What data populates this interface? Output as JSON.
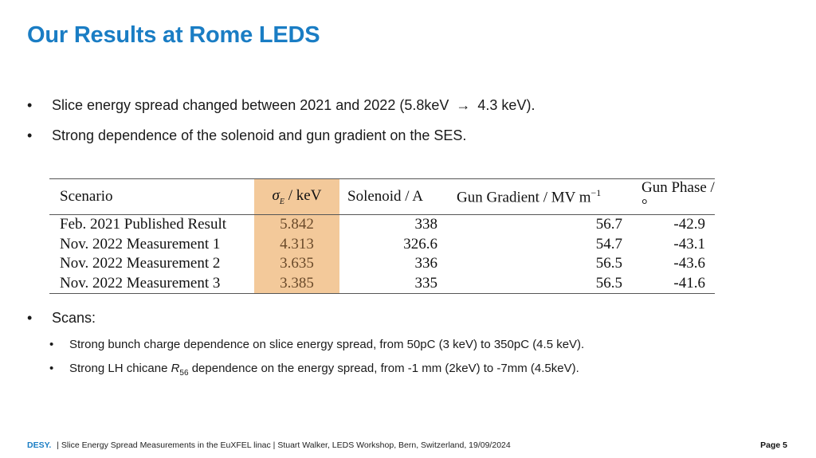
{
  "title": "Our Results at Rome LEDS",
  "bullets": [
    {
      "pre": "Slice energy spread changed between 2021 and 2022 (5.8keV",
      "arrow": "→",
      "post": "4.3 keV)."
    },
    {
      "text": "Strong dependence of the solenoid and gun gradient on the SES."
    }
  ],
  "table": {
    "headers": {
      "scenario": "Scenario",
      "sigma_symbol": "σ",
      "sigma_sub": "E",
      "sigma_unit": "/ keV",
      "solenoid": "Solenoid / A",
      "gradient": "Gun Gradient / MV m",
      "gradient_exp": "−1",
      "phase": "Gun Phase / °"
    },
    "rows": [
      {
        "scenario": "Feb. 2021 Published Result",
        "sigma": "5.842",
        "solenoid": "338",
        "gradient": "56.7",
        "phase": "-42.9"
      },
      {
        "scenario": "Nov. 2022 Measurement 1",
        "sigma": "4.313",
        "solenoid": "326.6",
        "gradient": "54.7",
        "phase": "-43.1"
      },
      {
        "scenario": "Nov. 2022 Measurement 2",
        "sigma": "3.635",
        "solenoid": "336",
        "gradient": "56.5",
        "phase": "-43.6"
      },
      {
        "scenario": "Nov. 2022 Measurement 3",
        "sigma": "3.385",
        "solenoid": "335",
        "gradient": "56.5",
        "phase": "-41.6"
      }
    ],
    "highlight_color": "#f3c99a"
  },
  "scans": {
    "label": "Scans:",
    "items": [
      {
        "text": "Strong bunch charge dependence on slice energy spread, from 50pC (3 keV)  to 350pC  (4.5 keV)."
      },
      {
        "pre": "Strong LH chicane ",
        "var": "R",
        "sub": "56",
        "post": " dependence on the energy spread, from -1 mm (2keV) to -7mm (4.5keV)."
      }
    ]
  },
  "footer": {
    "brand": "DESY.",
    "text": "| Slice Energy Spread Measurements in the EuXFEL linac | Stuart Walker, LEDS Workshop, Bern, Switzerland, 19/09/2024",
    "page": "Page 5"
  },
  "colors": {
    "accent": "#1a7dc4"
  }
}
